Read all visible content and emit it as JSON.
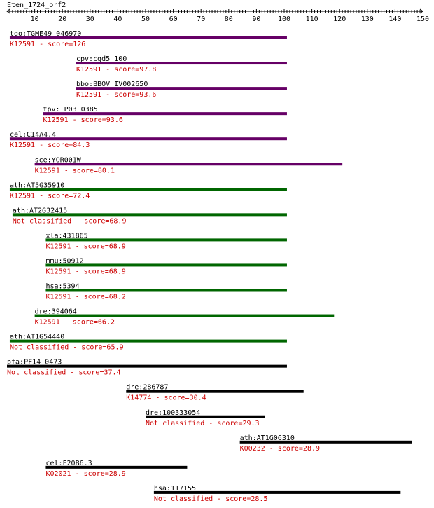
{
  "chart_data": {
    "type": "bar",
    "title": "Eten_1724_orf2",
    "x_axis": {
      "min": 0,
      "max": 150,
      "ticks": [
        10,
        20,
        30,
        40,
        50,
        60,
        70,
        80,
        90,
        100,
        110,
        120,
        130,
        140,
        150
      ]
    },
    "text_color": "#cc0000",
    "hits": [
      {
        "name": "tgo:TGME49_046970",
        "annotation": "K12591 - score=126",
        "start": 1,
        "end": 101,
        "color": "#660066"
      },
      {
        "name": "cpv:cgd5_100",
        "annotation": "K12591 - score=97.8",
        "start": 25,
        "end": 101,
        "color": "#660066"
      },
      {
        "name": "bbo:BBOV_IV002650",
        "annotation": "K12591 - score=93.6",
        "start": 25,
        "end": 101,
        "color": "#660066"
      },
      {
        "name": "tpv:TP03_0385",
        "annotation": "K12591 - score=93.6",
        "start": 13,
        "end": 101,
        "color": "#660066"
      },
      {
        "name": "cel:C14A4.4",
        "annotation": "K12591 - score=84.3",
        "start": 1,
        "end": 101,
        "color": "#660066"
      },
      {
        "name": "sce:YOR001W",
        "annotation": "K12591 - score=80.1",
        "start": 10,
        "end": 121,
        "color": "#660066"
      },
      {
        "name": "ath:AT5G35910",
        "annotation": "K12591 - score=72.4",
        "start": 1,
        "end": 101,
        "color": "#006600"
      },
      {
        "name": "ath:AT2G32415",
        "annotation": "Not classified - score=68.9",
        "start": 2,
        "end": 101,
        "color": "#006600"
      },
      {
        "name": "xla:431865",
        "annotation": "K12591 - score=68.9",
        "start": 14,
        "end": 101,
        "color": "#006600"
      },
      {
        "name": "mmu:50912",
        "annotation": "K12591 - score=68.9",
        "start": 14,
        "end": 101,
        "color": "#006600"
      },
      {
        "name": "hsa:5394",
        "annotation": "K12591 - score=68.2",
        "start": 14,
        "end": 101,
        "color": "#006600"
      },
      {
        "name": "dre:394064",
        "annotation": "K12591 - score=66.2",
        "start": 10,
        "end": 118,
        "color": "#006600"
      },
      {
        "name": "ath:AT1G54440",
        "annotation": "Not classified - score=65.9",
        "start": 1,
        "end": 101,
        "color": "#006600"
      },
      {
        "name": "pfa:PF14_0473",
        "annotation": "Not classified - score=37.4",
        "start": 0,
        "end": 101,
        "color": "#000000"
      },
      {
        "name": "dre:286787",
        "annotation": "K14774 - score=30.4",
        "start": 43,
        "end": 107,
        "color": "#000000"
      },
      {
        "name": "dre:100333054",
        "annotation": "Not classified - score=29.3",
        "start": 50,
        "end": 93,
        "color": "#000000"
      },
      {
        "name": "ath:AT1G06310",
        "annotation": "K00232 - score=28.9",
        "start": 84,
        "end": 146,
        "color": "#000000"
      },
      {
        "name": "cel:F20B6.3",
        "annotation": "K02021 - score=28.9",
        "start": 14,
        "end": 65,
        "color": "#000000"
      },
      {
        "name": "hsa:117155",
        "annotation": "Not classified - score=28.5",
        "start": 53,
        "end": 142,
        "color": "#000000"
      }
    ]
  }
}
